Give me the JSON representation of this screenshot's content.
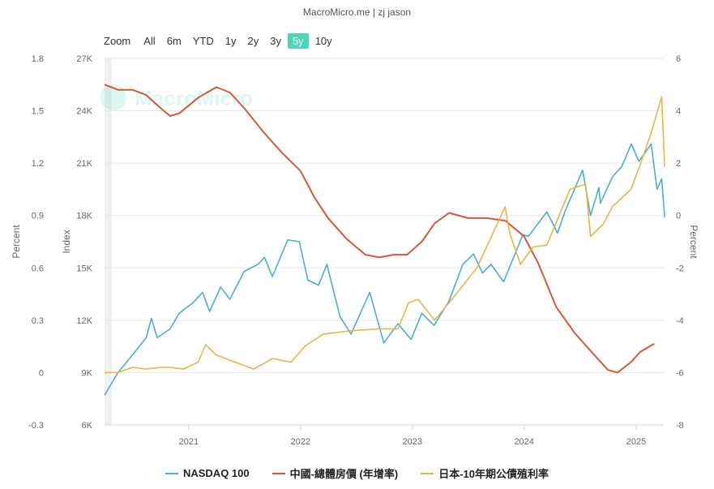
{
  "credit": "MacroMicro.me | zj jason",
  "watermark": "MacroMicro",
  "zoom": {
    "label": "Zoom",
    "buttons": [
      "All",
      "6m",
      "YTD",
      "1y",
      "2y",
      "3y",
      "5y",
      "10y"
    ],
    "active": "5y"
  },
  "colors": {
    "nasdaq": "#4aaed0",
    "china": "#d35a3a",
    "japan": "#e8b642",
    "grid": "#e6e6e6",
    "axis": "#666666",
    "zoom_active": "#49d6b9"
  },
  "legend": [
    {
      "key": "nasdaq",
      "label": "NASDAQ 100"
    },
    {
      "key": "china",
      "label": "中國-總體房價 (年增率)"
    },
    {
      "key": "japan",
      "label": "日本-10年期公債殖利率"
    }
  ],
  "chart_data": {
    "type": "line",
    "x_range": [
      "2020-04-01",
      "2025-04-01"
    ],
    "x_ticks": [
      "2021",
      "2022",
      "2023",
      "2024",
      "2025"
    ],
    "axes": {
      "left_percent": {
        "title": "Percent",
        "min": -0.3,
        "max": 1.8,
        "ticks": [
          "1.8",
          "1.5",
          "1.2",
          "0.9",
          "0.6",
          "0.3",
          "0",
          "-0.3"
        ]
      },
      "left_index": {
        "title": "Index",
        "min": 6000,
        "max": 27000,
        "ticks": [
          "27K",
          "24K",
          "21K",
          "18K",
          "15K",
          "12K",
          "9K",
          "6K"
        ]
      },
      "right_percent": {
        "title": "Percent",
        "min": -8,
        "max": 6,
        "ticks": [
          "6",
          "4",
          "2",
          "0",
          "-2",
          "-4",
          "-6",
          "-8"
        ]
      }
    },
    "grid": true,
    "legend_position": "bottom",
    "series": [
      {
        "key": "nasdaq",
        "name": "NASDAQ 100",
        "axis": "left_index",
        "points": [
          [
            "2020-04-01",
            7700
          ],
          [
            "2020-05-15",
            9000
          ],
          [
            "2020-07-01",
            10000
          ],
          [
            "2020-08-15",
            11000
          ],
          [
            "2020-09-01",
            12100
          ],
          [
            "2020-09-20",
            11000
          ],
          [
            "2020-11-01",
            11500
          ],
          [
            "2020-12-01",
            12400
          ],
          [
            "2021-01-15",
            13000
          ],
          [
            "2021-02-15",
            13600
          ],
          [
            "2021-03-10",
            12500
          ],
          [
            "2021-04-15",
            13900
          ],
          [
            "2021-05-15",
            13200
          ],
          [
            "2021-07-01",
            14800
          ],
          [
            "2021-08-15",
            15200
          ],
          [
            "2021-09-05",
            15600
          ],
          [
            "2021-10-01",
            14500
          ],
          [
            "2021-11-20",
            16600
          ],
          [
            "2021-12-28",
            16500
          ],
          [
            "2022-01-25",
            14300
          ],
          [
            "2022-03-01",
            14000
          ],
          [
            "2022-03-28",
            15200
          ],
          [
            "2022-05-10",
            12200
          ],
          [
            "2022-06-15",
            11200
          ],
          [
            "2022-08-15",
            13600
          ],
          [
            "2022-09-30",
            10700
          ],
          [
            "2022-11-15",
            11800
          ],
          [
            "2022-12-28",
            10900
          ],
          [
            "2023-02-01",
            12400
          ],
          [
            "2023-03-13",
            11700
          ],
          [
            "2023-05-01",
            13100
          ],
          [
            "2023-06-15",
            15200
          ],
          [
            "2023-07-20",
            15800
          ],
          [
            "2023-08-18",
            14700
          ],
          [
            "2023-09-15",
            15200
          ],
          [
            "2023-10-26",
            14200
          ],
          [
            "2023-12-28",
            16900
          ],
          [
            "2024-01-15",
            16800
          ],
          [
            "2024-03-15",
            18200
          ],
          [
            "2024-04-19",
            17000
          ],
          [
            "2024-05-15",
            18300
          ],
          [
            "2024-07-10",
            20600
          ],
          [
            "2024-08-05",
            18000
          ],
          [
            "2024-09-01",
            19600
          ],
          [
            "2024-09-06",
            18700
          ],
          [
            "2024-10-15",
            20200
          ],
          [
            "2024-11-15",
            20800
          ],
          [
            "2024-12-16",
            22100
          ],
          [
            "2025-01-10",
            21100
          ],
          [
            "2025-02-19",
            22100
          ],
          [
            "2025-03-10",
            19500
          ],
          [
            "2025-03-25",
            20100
          ],
          [
            "2025-04-04",
            17900
          ]
        ]
      },
      {
        "key": "china",
        "name": "中國-總體房價 (年增率)",
        "axis": "right_percent",
        "points": [
          [
            "2020-04-01",
            5.0
          ],
          [
            "2020-05-15",
            4.8
          ],
          [
            "2020-07-01",
            4.8
          ],
          [
            "2020-08-15",
            4.6
          ],
          [
            "2020-10-01",
            4.1
          ],
          [
            "2020-11-01",
            3.8
          ],
          [
            "2020-12-01",
            3.9
          ],
          [
            "2021-02-01",
            4.5
          ],
          [
            "2021-04-01",
            4.9
          ],
          [
            "2021-05-15",
            4.7
          ],
          [
            "2021-07-01",
            4.1
          ],
          [
            "2021-09-01",
            3.2
          ],
          [
            "2021-11-01",
            2.4
          ],
          [
            "2022-01-01",
            1.7
          ],
          [
            "2022-02-15",
            0.7
          ],
          [
            "2022-04-01",
            -0.1
          ],
          [
            "2022-06-01",
            -0.9
          ],
          [
            "2022-08-01",
            -1.5
          ],
          [
            "2022-09-15",
            -1.6
          ],
          [
            "2022-11-01",
            -1.5
          ],
          [
            "2022-12-15",
            -1.5
          ],
          [
            "2023-02-01",
            -1.0
          ],
          [
            "2023-03-15",
            -0.3
          ],
          [
            "2023-05-01",
            0.1
          ],
          [
            "2023-07-01",
            -0.1
          ],
          [
            "2023-09-01",
            -0.1
          ],
          [
            "2023-11-01",
            -0.2
          ],
          [
            "2024-01-01",
            -0.8
          ],
          [
            "2024-02-15",
            -1.8
          ],
          [
            "2024-04-15",
            -3.5
          ],
          [
            "2024-06-15",
            -4.5
          ],
          [
            "2024-08-15",
            -5.3
          ],
          [
            "2024-10-01",
            -5.9
          ],
          [
            "2024-11-01",
            -6.0
          ],
          [
            "2024-12-15",
            -5.6
          ],
          [
            "2025-01-15",
            -5.2
          ],
          [
            "2025-03-01",
            -4.9
          ]
        ]
      },
      {
        "key": "japan",
        "name": "日本-10年期公債殖利率",
        "axis": "left_percent",
        "points": [
          [
            "2020-04-01",
            0.0
          ],
          [
            "2020-05-15",
            0.0
          ],
          [
            "2020-07-01",
            0.03
          ],
          [
            "2020-08-15",
            0.02
          ],
          [
            "2020-10-01",
            0.03
          ],
          [
            "2020-11-01",
            0.03
          ],
          [
            "2020-12-15",
            0.02
          ],
          [
            "2021-02-01",
            0.06
          ],
          [
            "2021-02-25",
            0.16
          ],
          [
            "2021-04-01",
            0.1
          ],
          [
            "2021-06-01",
            0.06
          ],
          [
            "2021-08-01",
            0.02
          ],
          [
            "2021-10-01",
            0.08
          ],
          [
            "2021-12-01",
            0.06
          ],
          [
            "2022-01-15",
            0.15
          ],
          [
            "2022-03-15",
            0.22
          ],
          [
            "2022-06-15",
            0.24
          ],
          [
            "2022-09-15",
            0.25
          ],
          [
            "2022-11-15",
            0.25
          ],
          [
            "2022-12-20",
            0.4
          ],
          [
            "2023-01-20",
            0.42
          ],
          [
            "2023-03-15",
            0.3
          ],
          [
            "2023-05-15",
            0.43
          ],
          [
            "2023-07-31",
            0.6
          ],
          [
            "2023-10-31",
            0.95
          ],
          [
            "2023-11-15",
            0.8
          ],
          [
            "2023-12-20",
            0.62
          ],
          [
            "2024-01-30",
            0.72
          ],
          [
            "2024-03-15",
            0.73
          ],
          [
            "2024-05-30",
            1.05
          ],
          [
            "2024-07-20",
            1.08
          ],
          [
            "2024-08-05",
            0.78
          ],
          [
            "2024-09-15",
            0.85
          ],
          [
            "2024-10-15",
            0.95
          ],
          [
            "2024-12-15",
            1.05
          ],
          [
            "2025-01-20",
            1.22
          ],
          [
            "2025-02-20",
            1.38
          ],
          [
            "2025-03-25",
            1.58
          ],
          [
            "2025-04-04",
            1.18
          ]
        ]
      }
    ]
  }
}
